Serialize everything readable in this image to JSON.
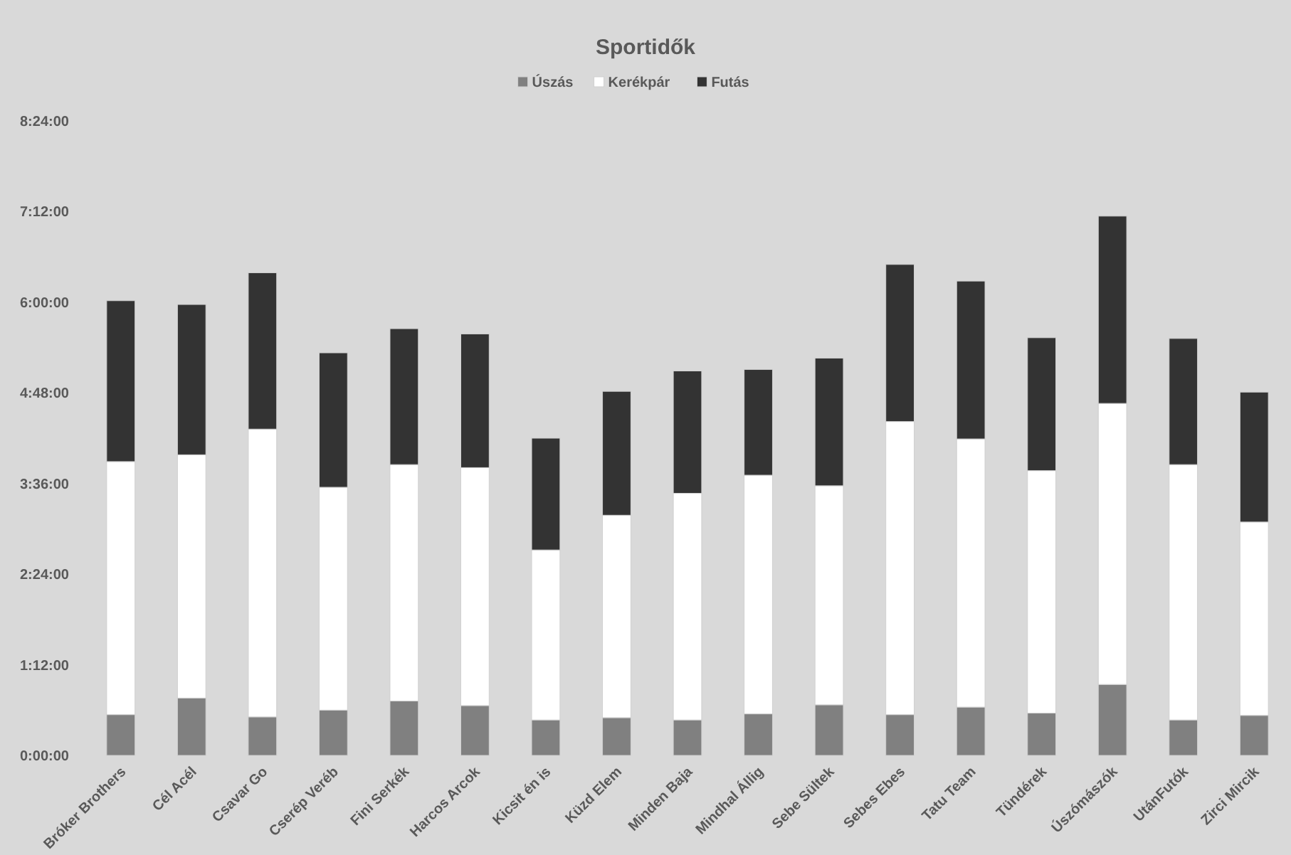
{
  "chart_data": {
    "type": "bar",
    "title": "Sportidők",
    "stacked": true,
    "legend": "top",
    "grid": false,
    "categories": [
      "Bróker Brothers",
      "Cél Acél",
      "Csavar Go",
      "Cserép Veréb",
      "Fini Serkék",
      "Harcos Arcok",
      "Kicsit én is",
      "Küzd Elem",
      "Minden Baja",
      "Mindhal Állig",
      "Sebe Sültek",
      "Sebes Ebes",
      "Tatu Team",
      "Tündérek",
      "Úszómászók",
      "UtánFutók",
      "Zirci Mircik"
    ],
    "series": [
      {
        "name": "Úszás",
        "color": "#808080",
        "values": [
          0.54,
          0.76,
          0.51,
          0.6,
          0.72,
          0.66,
          0.47,
          0.5,
          0.47,
          0.55,
          0.67,
          0.54,
          0.64,
          0.56,
          0.94,
          0.47,
          0.53
        ]
      },
      {
        "name": "Kerékpár",
        "color": "#ffffff",
        "values": [
          3.35,
          3.22,
          3.81,
          2.95,
          3.13,
          3.15,
          2.25,
          2.68,
          3.0,
          3.16,
          2.9,
          3.88,
          3.55,
          3.21,
          3.72,
          3.38,
          2.56
        ]
      },
      {
        "name": "Futás",
        "color": "#333333",
        "values": [
          2.13,
          1.99,
          2.07,
          1.78,
          1.8,
          1.77,
          1.48,
          1.64,
          1.62,
          1.4,
          1.69,
          2.08,
          2.09,
          1.76,
          2.48,
          1.67,
          1.72
        ]
      }
    ],
    "ylim": [
      0,
      8.4
    ],
    "yticks": [
      {
        "value": 0,
        "label": "0:00:00"
      },
      {
        "value": 1.2,
        "label": "1:12:00"
      },
      {
        "value": 2.4,
        "label": "2:24:00"
      },
      {
        "value": 3.6,
        "label": "3:36:00"
      },
      {
        "value": 4.8,
        "label": "4:48:00"
      },
      {
        "value": 6,
        "label": "6:00:00"
      },
      {
        "value": 7.2,
        "label": "7:12:00"
      },
      {
        "value": 8.4,
        "label": "8:24:00"
      }
    ]
  }
}
